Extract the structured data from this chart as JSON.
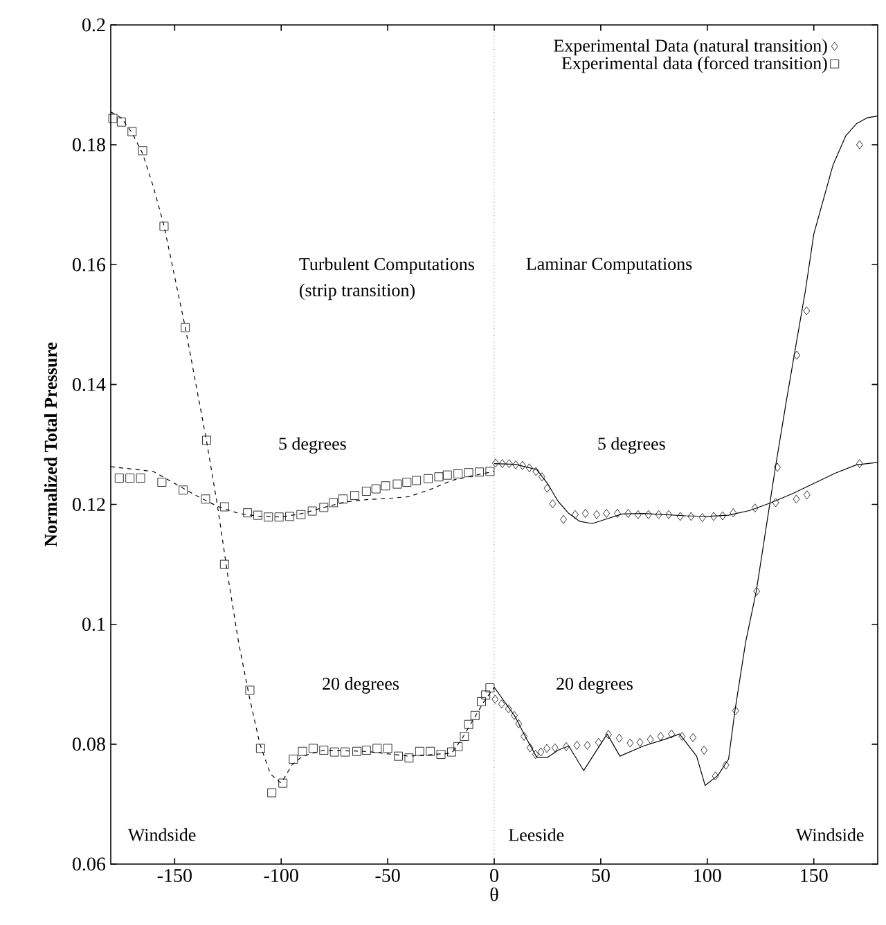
{
  "chart_data": {
    "type": "line",
    "xlabel": "θ",
    "ylabel": "Normalized Total Pressure",
    "xlim": [
      -180,
      180
    ],
    "ylim": [
      0.06,
      0.2
    ],
    "xticks": [
      -150,
      -100,
      -50,
      0,
      50,
      100,
      150
    ],
    "yticks": [
      0.06,
      0.08,
      0.1,
      0.12,
      0.14,
      0.16,
      0.18,
      0.2
    ],
    "legend": "top right",
    "series": [
      {
        "line_style": "dashed",
        "color": "#000000",
        "x": [
          -180,
          -160,
          -140,
          -130,
          -120,
          -110,
          -100,
          -90,
          -80,
          -70,
          -60,
          -50,
          -40,
          -30,
          -20,
          -10,
          0
        ],
        "values": [
          0.1263,
          0.1255,
          0.1215,
          0.1197,
          0.1185,
          0.118,
          0.1179,
          0.1185,
          0.1195,
          0.1204,
          0.1208,
          0.121,
          0.1213,
          0.1225,
          0.124,
          0.1248,
          0.1255
        ]
      },
      {
        "line_style": "dashed",
        "color": "#000000",
        "x": [
          -180,
          -175,
          -170,
          -165,
          -160,
          -155,
          -150,
          -145,
          -140,
          -135,
          -130,
          -125,
          -120,
          -115,
          -110,
          -105,
          -100,
          -95,
          -90,
          -80,
          -60,
          -40,
          -20,
          -15,
          -10,
          -5,
          0
        ],
        "values": [
          0.1855,
          0.1845,
          0.182,
          0.1785,
          0.173,
          0.1665,
          0.158,
          0.1495,
          0.14,
          0.1305,
          0.12,
          0.108,
          0.097,
          0.088,
          0.08,
          0.075,
          0.0735,
          0.0765,
          0.078,
          0.079,
          0.0788,
          0.078,
          0.0785,
          0.081,
          0.084,
          0.087,
          0.0895
        ]
      },
      {
        "line_style": "solid",
        "color": "#000000",
        "x": [
          0,
          10,
          20,
          25,
          30,
          35,
          40,
          46,
          52,
          60,
          70,
          80,
          90,
          100,
          110,
          120,
          130,
          140,
          150,
          160,
          170,
          180
        ],
        "values": [
          0.1268,
          0.1267,
          0.1258,
          0.1235,
          0.1205,
          0.1185,
          0.1172,
          0.1168,
          0.1175,
          0.1184,
          0.1185,
          0.1183,
          0.1181,
          0.118,
          0.1182,
          0.119,
          0.1203,
          0.1218,
          0.1235,
          0.1252,
          0.1266,
          0.127
        ]
      },
      {
        "line_style": "solid",
        "color": "#000000",
        "x": [
          0,
          5,
          10,
          15,
          20,
          25,
          30,
          35,
          42,
          53,
          59,
          70,
          80,
          87,
          95,
          99,
          105,
          110,
          113,
          118,
          123,
          128,
          132,
          137,
          141,
          146,
          150,
          159,
          165,
          170,
          175,
          180
        ],
        "values": [
          0.0895,
          0.087,
          0.0845,
          0.081,
          0.0778,
          0.0778,
          0.079,
          0.0797,
          0.0756,
          0.0817,
          0.078,
          0.0797,
          0.0808,
          0.0817,
          0.078,
          0.0731,
          0.0748,
          0.0775,
          0.0856,
          0.097,
          0.1055,
          0.117,
          0.1262,
          0.137,
          0.1453,
          0.1555,
          0.1651,
          0.1766,
          0.1815,
          0.1835,
          0.1845,
          0.1848
        ]
      },
      {
        "type": "scatter",
        "marker": "diamond",
        "name": "Experimental Data (natural transition)",
        "color": "#000000",
        "x": [
          0.6,
          3.8,
          7,
          10.1,
          13.3,
          16.5,
          19.6,
          22.4,
          24.9,
          27.4,
          32.5,
          38,
          42.8,
          48.1,
          52.7,
          57.8,
          62.9,
          67.5,
          72.4,
          77.2,
          81.9,
          87.3,
          92.4,
          97.7,
          103,
          107.2,
          112.2,
          122.4,
          132.1,
          141.8,
          146.8,
          171.5,
          0.4,
          3.5,
          6.7,
          9.4,
          11.5,
          14,
          16.8,
          19.4,
          21.9,
          24.7,
          28.5,
          33.8,
          38.8,
          43.7,
          49,
          53.6,
          58.7,
          63.8,
          68.4,
          73.3,
          78.1,
          83.2,
          88.2,
          93.3,
          98.5,
          103.8,
          108.7,
          113.3,
          123.2,
          132.9,
          142,
          146.6,
          171.5
        ],
        "values": [
          0.1269,
          0.1268,
          0.1268,
          0.1266,
          0.1265,
          0.1261,
          0.1255,
          0.1246,
          0.1227,
          0.1201,
          0.1175,
          0.1183,
          0.1185,
          0.1183,
          0.1185,
          0.1185,
          0.1185,
          0.1183,
          0.1183,
          0.1183,
          0.1183,
          0.118,
          0.118,
          0.1178,
          0.118,
          0.1181,
          0.1186,
          0.1194,
          0.1203,
          0.1209,
          0.1216,
          0.1268,
          0.0875,
          0.0867,
          0.0859,
          0.0848,
          0.0834,
          0.0813,
          0.0794,
          0.0783,
          0.0787,
          0.0793,
          0.0794,
          0.0796,
          0.0798,
          0.0798,
          0.0803,
          0.0816,
          0.081,
          0.0802,
          0.0803,
          0.0808,
          0.0813,
          0.0817,
          0.0813,
          0.0811,
          0.079,
          0.0747,
          0.0765,
          0.0856,
          0.1055,
          0.1262,
          0.1449,
          0.1523,
          0.18
        ]
      },
      {
        "type": "scatter",
        "marker": "square",
        "name": "Experimental data (forced transition)",
        "color": "#000000",
        "x": [
          -179,
          -175,
          -170,
          -165,
          -155,
          -145,
          -135,
          -126.6,
          -114.7,
          -109.7,
          -104.4,
          -99.2,
          -94.3,
          -90,
          -85,
          -80,
          -75,
          -70,
          -64.5,
          -60,
          -55,
          -50,
          -45,
          -40,
          -35,
          -30,
          -25,
          -20,
          -17,
          -14,
          -12,
          -9,
          -6,
          -4,
          -2,
          -176,
          -171,
          -166,
          -156,
          -146,
          -135.5,
          -126.6,
          -115.8,
          -111,
          -106,
          -101,
          -96,
          -90.7,
          -85.4,
          -80,
          -75.5,
          -71,
          -65.5,
          -60,
          -55.5,
          -51,
          -45.5,
          -41,
          -36.5,
          -31,
          -26,
          -22,
          -17,
          -12,
          -7,
          -2
        ],
        "values": [
          0.1844,
          0.1838,
          0.1822,
          0.179,
          0.1664,
          0.1495,
          0.1307,
          0.11,
          0.089,
          0.0793,
          0.0719,
          0.0735,
          0.0775,
          0.0788,
          0.0793,
          0.079,
          0.0787,
          0.0787,
          0.0788,
          0.079,
          0.0793,
          0.0793,
          0.078,
          0.0777,
          0.0788,
          0.0788,
          0.0783,
          0.0787,
          0.0796,
          0.0813,
          0.0833,
          0.0848,
          0.0871,
          0.0882,
          0.0894,
          0.1244,
          0.1244,
          0.1244,
          0.1237,
          0.1224,
          0.1209,
          0.1196,
          0.1186,
          0.1182,
          0.1179,
          0.1179,
          0.118,
          0.1183,
          0.1189,
          0.1195,
          0.1203,
          0.1209,
          0.1215,
          0.1222,
          0.1226,
          0.1231,
          0.1234,
          0.1237,
          0.124,
          0.1243,
          0.1246,
          0.1249,
          0.1251,
          0.1253,
          0.1254,
          0.1255
        ]
      }
    ],
    "ref_lines": [
      {
        "axis": "x",
        "value": 0,
        "line_style": "dotted",
        "color": "#000000"
      }
    ],
    "annotations": [
      "Turbulent Computations",
      "(strip transition)",
      "Laminar Computations",
      "5 degrees",
      "5 degrees",
      "20 degrees",
      "20 degrees",
      "Windside",
      "Leeside",
      "Windside"
    ]
  }
}
